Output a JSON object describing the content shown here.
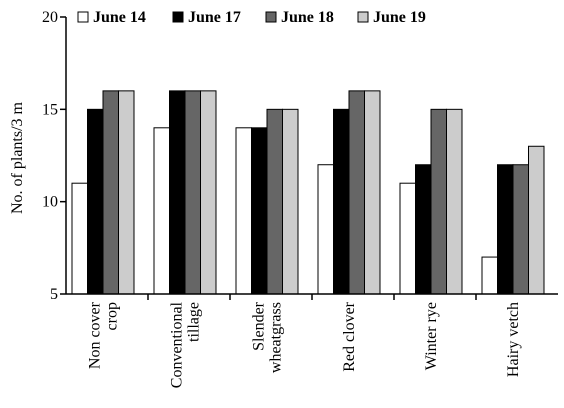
{
  "chart_data": {
    "type": "bar",
    "title": "",
    "xlabel": "",
    "ylabel": "No. of plants/3 m",
    "ylim": [
      5,
      20
    ],
    "yticks": [
      5,
      10,
      15,
      20
    ],
    "grid": false,
    "legend_position": "top",
    "categories": [
      [
        "Non cover",
        "crop"
      ],
      [
        "Conventional",
        "tillage"
      ],
      [
        "Slender",
        "wheatgrass"
      ],
      [
        "Red clover"
      ],
      [
        "Winter rye"
      ],
      [
        "Hairy vetch"
      ]
    ],
    "series": [
      {
        "name": "June 14",
        "color": "#ffffff",
        "values": [
          11,
          14,
          14,
          12,
          11,
          7
        ]
      },
      {
        "name": "June 17",
        "color": "#000000",
        "values": [
          15,
          16,
          14,
          15,
          12,
          12
        ]
      },
      {
        "name": "June 18",
        "color": "#666666",
        "values": [
          16,
          16,
          15,
          16,
          15,
          12
        ]
      },
      {
        "name": "June 19",
        "color": "#cccccc",
        "values": [
          16,
          16,
          15,
          16,
          15,
          13
        ]
      }
    ]
  }
}
